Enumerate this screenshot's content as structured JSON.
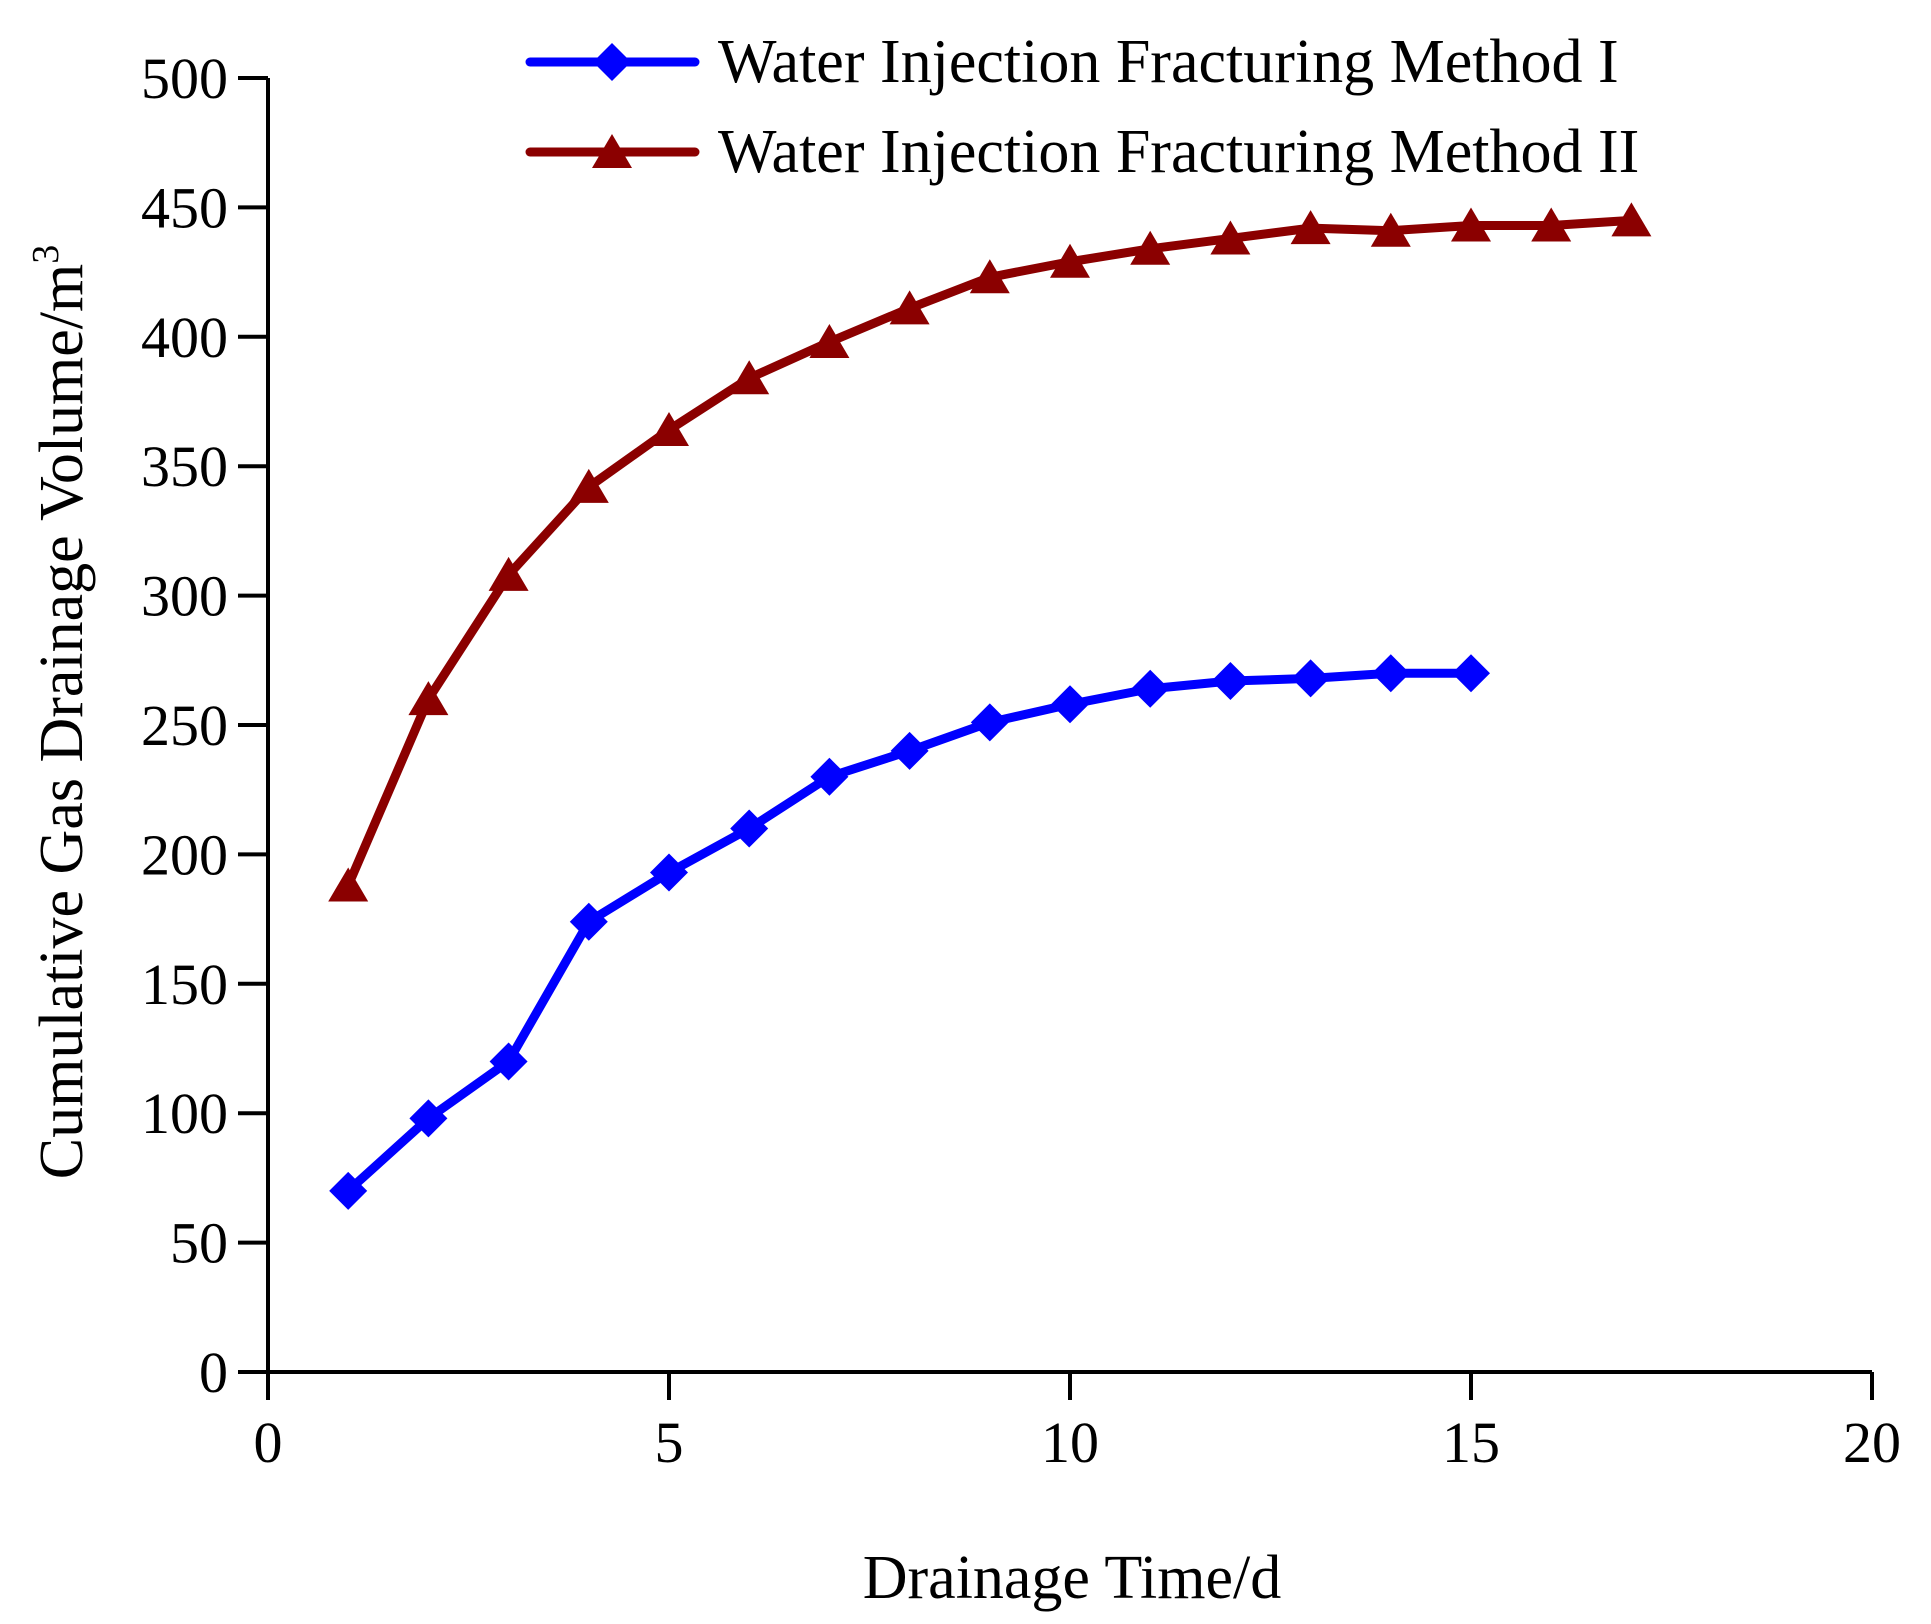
{
  "chart_data": {
    "type": "line",
    "title": "",
    "xlabel": "Drainage Time/d",
    "ylabel": "Cumulative Gas Drainage Volume/m",
    "ylabel_superscript": "3",
    "xlim": [
      0,
      20
    ],
    "ylim": [
      0,
      500
    ],
    "xticks": [
      0,
      5,
      10,
      15,
      20
    ],
    "yticks": [
      0,
      50,
      100,
      150,
      200,
      250,
      300,
      350,
      400,
      450,
      500
    ],
    "grid": false,
    "legend_position": "top-right",
    "series": [
      {
        "name": "Water Injection Fracturing Method I",
        "color": "#0000ff",
        "marker": "diamond",
        "x": [
          1,
          2,
          3,
          4,
          5,
          6,
          7,
          8,
          9,
          10,
          11,
          12,
          13,
          14,
          15
        ],
        "y": [
          70,
          98,
          120,
          174,
          193,
          210,
          230,
          240,
          251,
          258,
          264,
          267,
          268,
          270,
          270
        ]
      },
      {
        "name": "Water Injection Fracturing Method II",
        "color": "#8b0000",
        "marker": "triangle",
        "x": [
          1,
          2,
          3,
          4,
          5,
          6,
          7,
          8,
          9,
          10,
          11,
          12,
          13,
          14,
          15,
          16,
          17
        ],
        "y": [
          188,
          260,
          308,
          342,
          364,
          384,
          398,
          411,
          423,
          429,
          434,
          438,
          442,
          441,
          443,
          443,
          445
        ]
      }
    ]
  }
}
